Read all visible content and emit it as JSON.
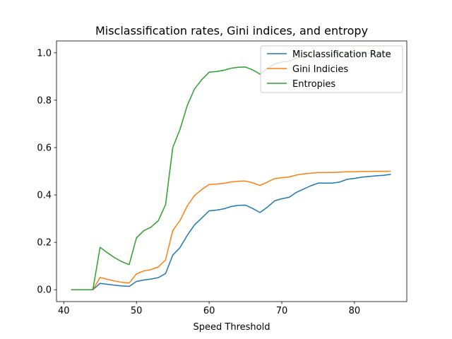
{
  "chart_data": {
    "type": "line",
    "title": "Misclassification rates, Gini indices, and entropy",
    "xlabel": "Speed Threshold",
    "ylabel": "",
    "xlim": [
      39,
      87.2
    ],
    "ylim": [
      -0.05,
      1.05
    ],
    "xticks": [
      40,
      50,
      60,
      70,
      80
    ],
    "yticks": [
      0.0,
      0.2,
      0.4,
      0.6,
      0.8,
      1.0
    ],
    "xtick_labels": [
      "40",
      "50",
      "60",
      "70",
      "80"
    ],
    "ytick_labels": [
      "0.0",
      "0.2",
      "0.4",
      "0.6",
      "0.8",
      "1.0"
    ],
    "grid": false,
    "legend_position": "upper-right",
    "x": [
      41,
      42,
      43,
      44,
      45,
      46,
      47,
      48,
      49,
      50,
      51,
      52,
      53,
      54,
      55,
      56,
      57,
      58,
      59,
      60,
      61,
      62,
      63,
      64,
      65,
      66,
      67,
      68,
      69,
      70,
      71,
      72,
      73,
      74,
      75,
      76,
      77,
      78,
      79,
      80,
      81,
      82,
      83,
      84,
      85
    ],
    "series": [
      {
        "name": "Misclassification Rate",
        "color": "#1f77b4",
        "values": [
          0.0,
          0.0,
          0.0,
          0.0,
          0.027,
          0.023,
          0.019,
          0.016,
          0.014,
          0.035,
          0.041,
          0.045,
          0.051,
          0.068,
          0.146,
          0.178,
          0.23,
          0.274,
          0.303,
          0.333,
          0.336,
          0.341,
          0.351,
          0.356,
          0.357,
          0.343,
          0.326,
          0.348,
          0.375,
          0.384,
          0.39,
          0.411,
          0.425,
          0.439,
          0.45,
          0.45,
          0.45,
          0.455,
          0.466,
          0.47,
          0.475,
          0.478,
          0.481,
          0.483,
          0.487
        ]
      },
      {
        "name": "Gini Indicies",
        "color": "#ff7f0e",
        "values": [
          0.0,
          0.0,
          0.0,
          0.0,
          0.052,
          0.044,
          0.037,
          0.031,
          0.028,
          0.067,
          0.079,
          0.085,
          0.096,
          0.126,
          0.25,
          0.292,
          0.354,
          0.398,
          0.423,
          0.444,
          0.446,
          0.449,
          0.455,
          0.458,
          0.459,
          0.451,
          0.44,
          0.454,
          0.469,
          0.473,
          0.476,
          0.484,
          0.489,
          0.492,
          0.495,
          0.495,
          0.495,
          0.496,
          0.498,
          0.498,
          0.499,
          0.499,
          0.5,
          0.5,
          0.5
        ]
      },
      {
        "name": "Entropies",
        "color": "#2ca02c",
        "values": [
          0.0,
          0.0,
          0.0,
          0.0,
          0.179,
          0.156,
          0.135,
          0.118,
          0.106,
          0.219,
          0.249,
          0.264,
          0.291,
          0.359,
          0.6,
          0.677,
          0.778,
          0.848,
          0.887,
          0.918,
          0.921,
          0.926,
          0.935,
          0.939,
          0.94,
          0.928,
          0.91,
          0.933,
          0.953,
          0.961,
          0.965,
          0.977,
          0.984,
          0.989,
          0.993,
          0.993,
          0.993,
          0.994,
          0.997,
          0.997,
          0.998,
          0.999,
          0.999,
          0.999,
          1.0
        ]
      }
    ]
  }
}
